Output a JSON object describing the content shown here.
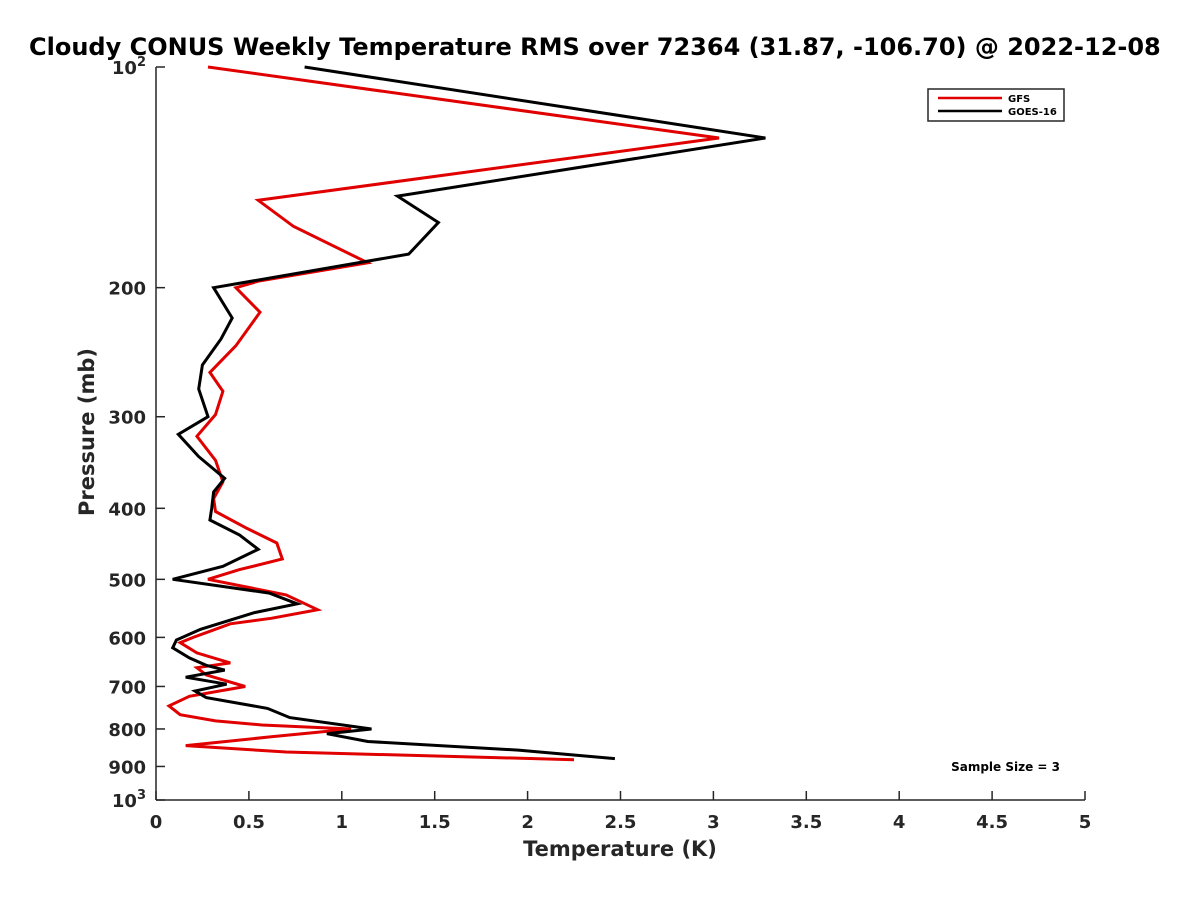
{
  "chart_data": {
    "type": "line",
    "title": "Cloudy CONUS Weekly Temperature RMS over 72364 (31.87, -106.70) @ 2022-12-08",
    "xlabel": "Temperature (K)",
    "ylabel": "Pressure (mb)",
    "xlim": [
      0,
      5
    ],
    "ylim": [
      100,
      1000
    ],
    "yscale": "log",
    "y_reversed": true,
    "x_ticks": [
      "0",
      "0.5",
      "1",
      "1.5",
      "2",
      "2.5",
      "3",
      "3.5",
      "4",
      "4.5",
      "5"
    ],
    "y_ticks": [
      {
        "value": 100,
        "base": "10",
        "exp": "2"
      },
      {
        "value": 200,
        "label": "200"
      },
      {
        "value": 300,
        "label": "300"
      },
      {
        "value": 400,
        "label": "400"
      },
      {
        "value": 500,
        "label": "500"
      },
      {
        "value": 600,
        "label": "600"
      },
      {
        "value": 700,
        "label": "700"
      },
      {
        "value": 800,
        "label": "800"
      },
      {
        "value": 900,
        "label": "900"
      },
      {
        "value": 1000,
        "base": "10",
        "exp": "3"
      }
    ],
    "legend_position": "top-right",
    "annotation": "Sample Size = 3",
    "series": [
      {
        "name": "GFS",
        "color": "#e00000",
        "points": [
          [
            0.28,
            100
          ],
          [
            3.03,
            125
          ],
          [
            0.55,
            152
          ],
          [
            0.74,
            165
          ],
          [
            1.14,
            185
          ],
          [
            0.55,
            196
          ],
          [
            0.43,
            200
          ],
          [
            0.56,
            216
          ],
          [
            0.43,
            240
          ],
          [
            0.29,
            261
          ],
          [
            0.36,
            277
          ],
          [
            0.32,
            298
          ],
          [
            0.22,
            319
          ],
          [
            0.32,
            344
          ],
          [
            0.36,
            368
          ],
          [
            0.31,
            388
          ],
          [
            0.32,
            404
          ],
          [
            0.49,
            426
          ],
          [
            0.65,
            446
          ],
          [
            0.68,
            469
          ],
          [
            0.45,
            485
          ],
          [
            0.28,
            500
          ],
          [
            0.7,
            525
          ],
          [
            0.87,
            550
          ],
          [
            0.62,
            565
          ],
          [
            0.4,
            575
          ],
          [
            0.2,
            600
          ],
          [
            0.13,
            610
          ],
          [
            0.22,
            630
          ],
          [
            0.4,
            650
          ],
          [
            0.22,
            660
          ],
          [
            0.27,
            675
          ],
          [
            0.48,
            700
          ],
          [
            0.18,
            722
          ],
          [
            0.07,
            744
          ],
          [
            0.13,
            765
          ],
          [
            0.32,
            780
          ],
          [
            0.57,
            790
          ],
          [
            1.05,
            800
          ],
          [
            0.62,
            820
          ],
          [
            0.16,
            843
          ],
          [
            0.7,
            860
          ],
          [
            2.25,
            881
          ]
        ]
      },
      {
        "name": "GOES-16",
        "color": "#000000",
        "points": [
          [
            0.8,
            100
          ],
          [
            3.28,
            125
          ],
          [
            1.3,
            150
          ],
          [
            1.52,
            163
          ],
          [
            1.36,
            180
          ],
          [
            0.31,
            200
          ],
          [
            0.41,
            220
          ],
          [
            0.35,
            235
          ],
          [
            0.25,
            255
          ],
          [
            0.23,
            275
          ],
          [
            0.28,
            300
          ],
          [
            0.12,
            317
          ],
          [
            0.23,
            340
          ],
          [
            0.37,
            364
          ],
          [
            0.31,
            380
          ],
          [
            0.3,
            400
          ],
          [
            0.29,
            415
          ],
          [
            0.45,
            435
          ],
          [
            0.55,
            455
          ],
          [
            0.36,
            480
          ],
          [
            0.09,
            500
          ],
          [
            0.61,
            522
          ],
          [
            0.76,
            540
          ],
          [
            0.53,
            555
          ],
          [
            0.24,
            585
          ],
          [
            0.11,
            605
          ],
          [
            0.09,
            620
          ],
          [
            0.18,
            640
          ],
          [
            0.27,
            655
          ],
          [
            0.37,
            665
          ],
          [
            0.16,
            680
          ],
          [
            0.38,
            695
          ],
          [
            0.21,
            710
          ],
          [
            0.27,
            725
          ],
          [
            0.6,
            750
          ],
          [
            0.72,
            772
          ],
          [
            1.16,
            800
          ],
          [
            0.92,
            812
          ],
          [
            1.14,
            832
          ],
          [
            1.95,
            855
          ],
          [
            2.47,
            878
          ]
        ]
      }
    ]
  }
}
